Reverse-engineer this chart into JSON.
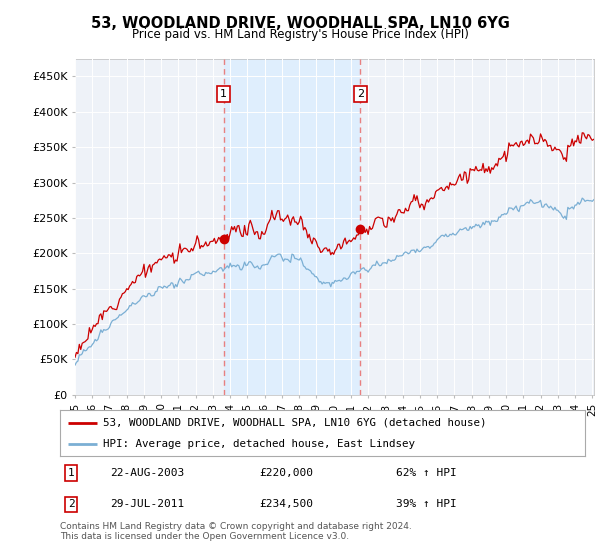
{
  "title": "53, WOODLAND DRIVE, WOODHALL SPA, LN10 6YG",
  "subtitle": "Price paid vs. HM Land Registry's House Price Index (HPI)",
  "ylim": [
    0,
    475000
  ],
  "yticks": [
    0,
    50000,
    100000,
    150000,
    200000,
    250000,
    300000,
    350000,
    400000,
    450000
  ],
  "ytick_labels": [
    "£0",
    "£50K",
    "£100K",
    "£150K",
    "£200K",
    "£250K",
    "£300K",
    "£350K",
    "£400K",
    "£450K"
  ],
  "line1_color": "#cc0000",
  "line2_color": "#7bafd4",
  "vline_color": "#e88080",
  "shade_color": "#ddeeff",
  "background_color": "#ffffff",
  "plot_bg_color": "#eef2f8",
  "grid_color": "#ffffff",
  "legend1_label": "53, WOODLAND DRIVE, WOODHALL SPA, LN10 6YG (detached house)",
  "legend2_label": "HPI: Average price, detached house, East Lindsey",
  "purchase1_date": "22-AUG-2003",
  "purchase1_price": "£220,000",
  "purchase1_hpi": "62% ↑ HPI",
  "purchase1_year": 2003.62,
  "purchase1_value": 220000,
  "purchase2_date": "29-JUL-2011",
  "purchase2_price": "£234,500",
  "purchase2_hpi": "39% ↑ HPI",
  "purchase2_year": 2011.55,
  "purchase2_value": 234500,
  "footer": "Contains HM Land Registry data © Crown copyright and database right 2024.\nThis data is licensed under the Open Government Licence v3.0."
}
